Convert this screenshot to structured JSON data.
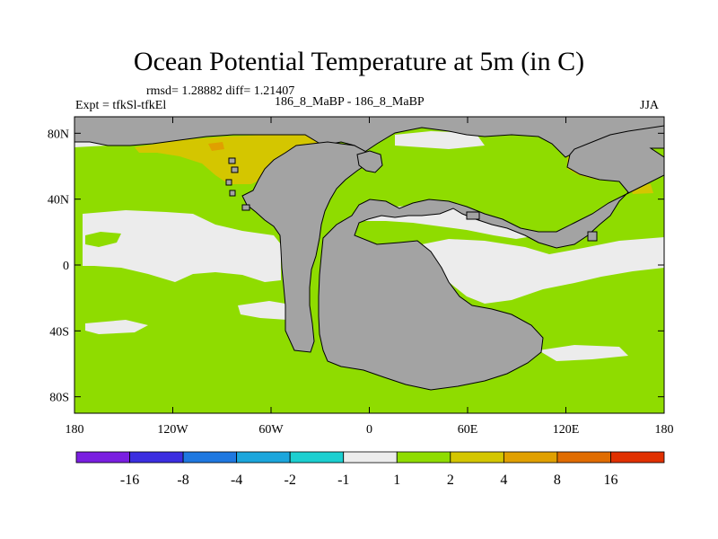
{
  "title": "Ocean Potential Temperature at 5m (in C)",
  "stats": "rmsd= 1.28882 diff= 1.21407",
  "experiment": "Expt = tfkSl-tfkEl",
  "comparison": "186_8_MaBP - 186_8_MaBP",
  "season": "JJA",
  "axes": {
    "lat_ticks": [
      {
        "lat": 80,
        "label": "80N"
      },
      {
        "lat": 40,
        "label": "40N"
      },
      {
        "lat": 0,
        "label": "0"
      },
      {
        "lat": -40,
        "label": "40S"
      },
      {
        "lat": -80,
        "label": "80S"
      }
    ],
    "lon_ticks": [
      {
        "lon": -180,
        "label": "180"
      },
      {
        "lon": -120,
        "label": "120W"
      },
      {
        "lon": -60,
        "label": "60W"
      },
      {
        "lon": 0,
        "label": "0"
      },
      {
        "lon": 60,
        "label": "60E"
      },
      {
        "lon": 120,
        "label": "120E"
      },
      {
        "lon": 180,
        "label": "180"
      }
    ],
    "lat_range": [
      -90,
      90
    ],
    "lon_range": [
      -180,
      180
    ]
  },
  "colorbar": {
    "colors": [
      "#7a1fe0",
      "#3b2ee0",
      "#1f78e0",
      "#1ca6dc",
      "#1ccfd0",
      "#ececec",
      "#8fdc00",
      "#d4c600",
      "#e0a000",
      "#e06c00",
      "#e03000"
    ],
    "labels": [
      "-16",
      "-8",
      "-4",
      "-2",
      "-1",
      "1",
      "2",
      "4",
      "8",
      "16"
    ]
  },
  "field_colors": {
    "land": "#a3a3a3",
    "near_zero": "#ececec",
    "warm_1_2": "#8fdc00",
    "warm_2_4": "#d4c600",
    "warm_4_8": "#e0a000",
    "warm_8_16": "#e06c00"
  }
}
